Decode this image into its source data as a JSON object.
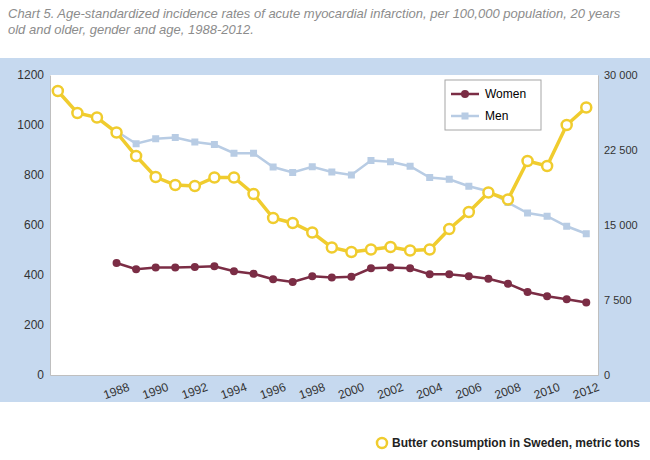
{
  "chart_data": {
    "type": "line",
    "title": "Chart 5. Age-standardized incidence rates of acute myocardial infarction, per 100,000 population, 20 years old and older, gender and age, 1988-2012.",
    "x": [
      1985,
      1986,
      1987,
      1988,
      1989,
      1990,
      1991,
      1992,
      1993,
      1994,
      1995,
      1996,
      1997,
      1998,
      1999,
      2000,
      2001,
      2002,
      2003,
      2004,
      2005,
      2006,
      2007,
      2008,
      2009,
      2010,
      2011,
      2012
    ],
    "xlim": [
      1984.6,
      2012.6
    ],
    "xticks": [
      1988,
      1990,
      1992,
      1994,
      1996,
      1998,
      2000,
      2002,
      2004,
      2006,
      2008,
      2010,
      2012
    ],
    "ylim": [
      0,
      1200
    ],
    "yticks": [
      0,
      200,
      400,
      600,
      800,
      1000,
      1200
    ],
    "y2lim": [
      0,
      30000
    ],
    "y2ticks": [
      0,
      {
        "value": 7500,
        "label": "7 500"
      },
      {
        "value": 15000,
        "label": "15 000"
      },
      {
        "value": 22500,
        "label": "22 500"
      },
      {
        "value": 30000,
        "label": "30 000"
      }
    ],
    "grid": false,
    "legend": "top-right",
    "series": [
      {
        "name": "Women",
        "color": "#7b2d45",
        "marker": "circle",
        "line_style": "solid",
        "values": [
          null,
          null,
          null,
          448,
          423,
          430,
          430,
          432,
          435,
          415,
          405,
          383,
          372,
          395,
          390,
          393,
          427,
          430,
          427,
          403,
          403,
          395,
          385,
          365,
          332,
          315,
          303,
          290
        ]
      },
      {
        "name": "Men",
        "color": "#b8cce4",
        "marker": "square",
        "line_style": "solid",
        "values": [
          null,
          null,
          null,
          975,
          925,
          945,
          950,
          932,
          922,
          887,
          887,
          832,
          810,
          833,
          812,
          800,
          858,
          853,
          835,
          790,
          783,
          755,
          735,
          690,
          648,
          635,
          595,
          565
        ]
      },
      {
        "name": "Butter consumption in Sweden, metric tons",
        "color": "#f0cc2e",
        "marker": "open-circle",
        "line_style": "solid",
        "axis": "y2",
        "values": [
          28400,
          26200,
          25750,
          24250,
          21900,
          19800,
          19000,
          18900,
          19750,
          19750,
          18100,
          15700,
          15200,
          14250,
          12750,
          12300,
          12550,
          12800,
          12450,
          12550,
          14600,
          16300,
          18250,
          17550,
          21400,
          20900,
          25000,
          26750
        ]
      }
    ]
  }
}
